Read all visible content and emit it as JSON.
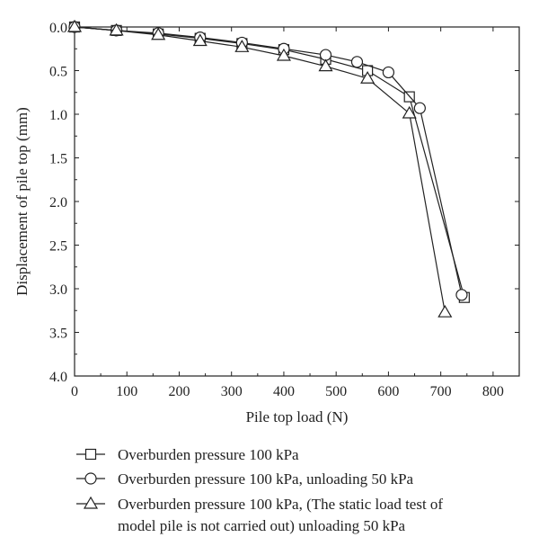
{
  "chart_data": {
    "type": "line",
    "title": "",
    "xlabel": "Pile top load (N)",
    "ylabel": "Displacement of pile top (mm)",
    "xlim": [
      0,
      850
    ],
    "ylim": [
      0,
      4.0
    ],
    "y_inverted": true,
    "x_ticks": [
      0,
      100,
      200,
      300,
      400,
      500,
      600,
      700,
      800
    ],
    "y_ticks": [
      0.0,
      0.5,
      1.0,
      1.5,
      2.0,
      2.5,
      3.0,
      3.5,
      4.0
    ],
    "x_tick_labels": [
      "0",
      "100",
      "200",
      "300",
      "400",
      "500",
      "600",
      "700",
      "800"
    ],
    "y_tick_labels": [
      "0.0",
      "0.5",
      "1.0",
      "1.5",
      "2.0",
      "2.5",
      "3.0",
      "3.5",
      "4.0"
    ],
    "grid": false,
    "legend_position": "bottom",
    "series": [
      {
        "name": "Overburden pressure 100 kPa",
        "marker": "square",
        "x": [
          0,
          80,
          160,
          240,
          320,
          400,
          480,
          560,
          640,
          745
        ],
        "y": [
          0.0,
          0.04,
          0.08,
          0.13,
          0.19,
          0.26,
          0.37,
          0.5,
          0.8,
          3.1
        ]
      },
      {
        "name": "Overburden pressure 100 kPa, unloading 50 kPa",
        "marker": "circle",
        "x": [
          0,
          80,
          160,
          240,
          320,
          400,
          480,
          540,
          600,
          660,
          740
        ],
        "y": [
          0.0,
          0.04,
          0.07,
          0.12,
          0.18,
          0.25,
          0.32,
          0.4,
          0.52,
          0.93,
          3.07
        ]
      },
      {
        "name": "Overburden pressure 100 kPa, (The static load test of model pile is not carried out) unloading 50 kPa",
        "legend_lines": [
          "Overburden pressure 100 kPa, (The static load test of",
          "model pile is not carried out) unloading 50 kPa"
        ],
        "marker": "triangle",
        "x": [
          0,
          80,
          160,
          240,
          320,
          400,
          480,
          560,
          640,
          708
        ],
        "y": [
          0.0,
          0.04,
          0.09,
          0.16,
          0.23,
          0.33,
          0.45,
          0.59,
          0.99,
          3.27
        ]
      }
    ]
  }
}
